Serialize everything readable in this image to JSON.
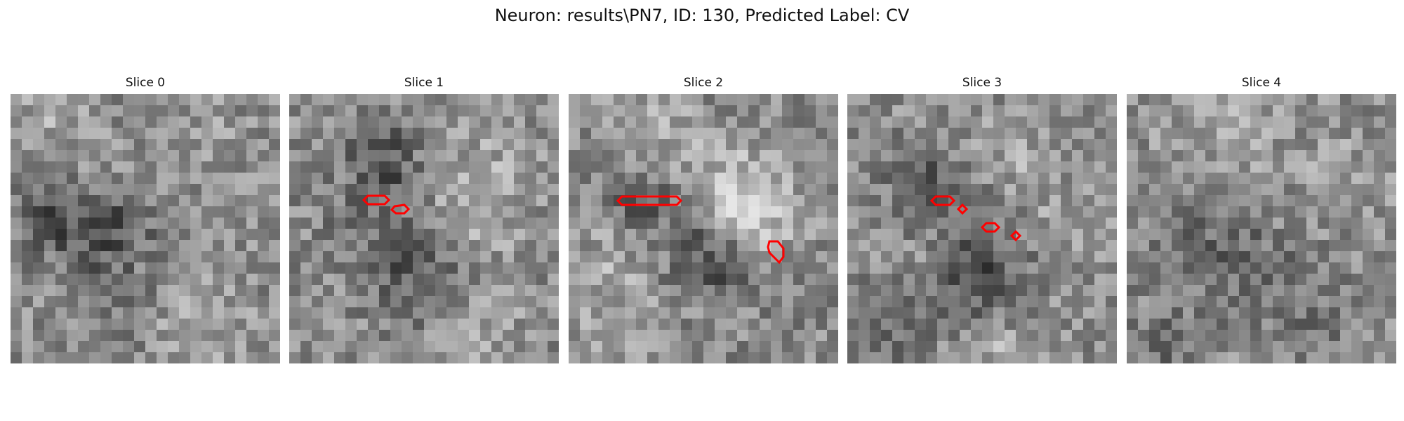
{
  "figure": {
    "title": "Neuron: results\\PN7, ID: 130, Predicted Label: CV"
  },
  "panels": [
    {
      "title": "Slice 0"
    },
    {
      "title": "Slice 1"
    },
    {
      "title": "Slice 2"
    },
    {
      "title": "Slice 3"
    },
    {
      "title": "Slice 4"
    }
  ],
  "colors": {
    "contour": "#ff0000"
  }
}
